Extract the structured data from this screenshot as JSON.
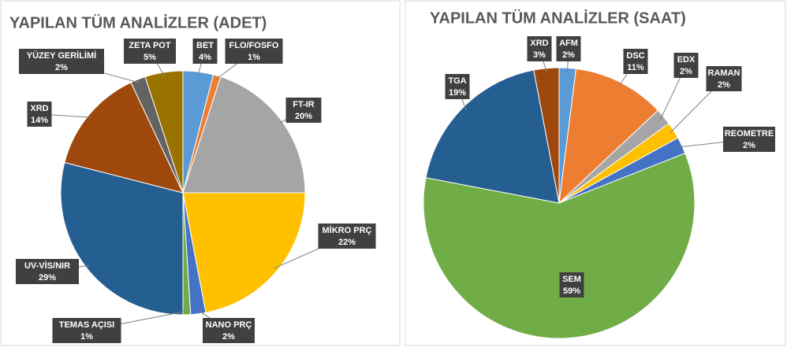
{
  "chart_data": [
    {
      "type": "pie",
      "title": "YAPILAN TÜM ANALİZLER (ADET)",
      "categories": [
        "BET",
        "FLO/FOSFO",
        "FT-IR",
        "MİKRO PRÇ",
        "NANO PRÇ",
        "TEMAS AÇISI",
        "UV-VİS/NIR",
        "XRD",
        "YÜZEY GERİLİMİ",
        "ZETA POT"
      ],
      "values": [
        4,
        1,
        20,
        22,
        2,
        1,
        29,
        14,
        2,
        5
      ],
      "value_labels": [
        "4%",
        "1%",
        "20%",
        "22%",
        "2%",
        "1%",
        "29%",
        "14%",
        "2%",
        "5%"
      ],
      "colors": [
        "#5b9bd5",
        "#ed7d31",
        "#a5a5a5",
        "#ffc000",
        "#4472c4",
        "#70ad47",
        "#255e91",
        "#9e480e",
        "#636363",
        "#997300"
      ]
    },
    {
      "type": "pie",
      "title": "YAPILAN TÜM ANALİZLER (SAAT)",
      "categories": [
        "AFM",
        "DSC",
        "EDX",
        "RAMAN",
        "REOMETRE",
        "SEM",
        "TGA",
        "XRD"
      ],
      "values": [
        2,
        11,
        2,
        2,
        2,
        59,
        19,
        3
      ],
      "value_labels": [
        "2%",
        "11%",
        "2%",
        "2%",
        "2%",
        "59%",
        "19%",
        "3%"
      ],
      "colors": [
        "#5b9bd5",
        "#ed7d31",
        "#a5a5a5",
        "#ffc000",
        "#4472c4",
        "#70ad47",
        "#255e91",
        "#9e480e"
      ]
    }
  ]
}
